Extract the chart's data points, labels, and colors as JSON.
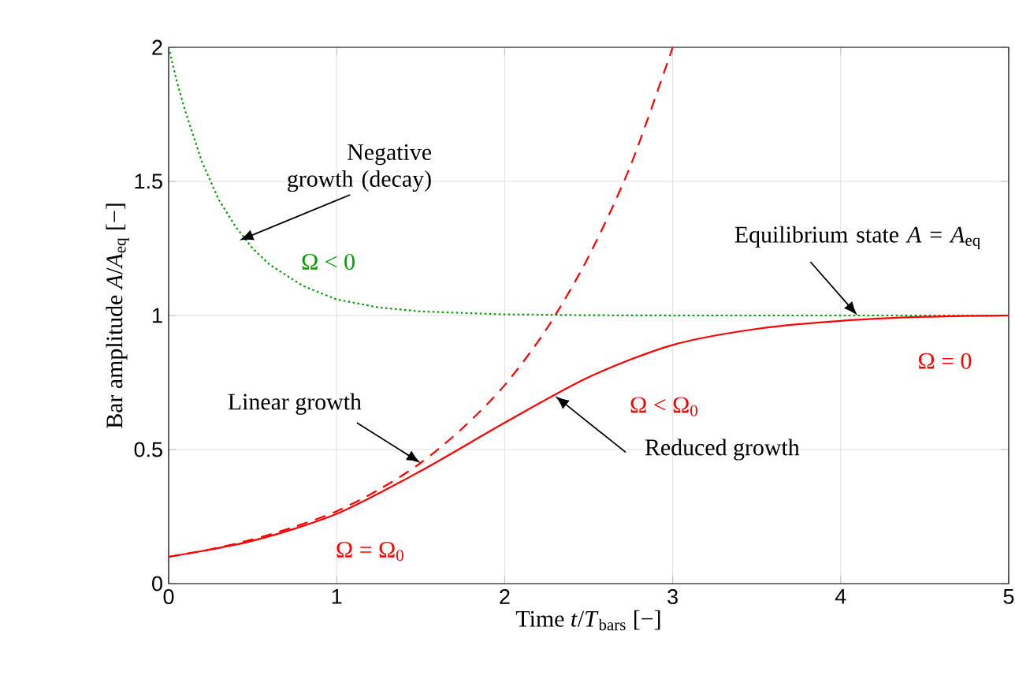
{
  "chart_data": {
    "type": "line",
    "xlabel": "Time *t*/*T*$_{bars}$ [−]",
    "ylabel": "Bar amplitude *A*/*A*$_{eq}$ [−]",
    "xlim": [
      0,
      5
    ],
    "ylim": [
      0,
      2
    ],
    "xticks": [
      0,
      1,
      2,
      3,
      4,
      5
    ],
    "yticks": [
      0,
      0.5,
      1,
      1.5,
      2
    ],
    "grid": true,
    "marker": "none",
    "series": [
      {
        "name": "Ω < 0",
        "color": "#00a000",
        "line_style": "dotted",
        "x": [
          0,
          0.05,
          0.1,
          0.2,
          0.3,
          0.4,
          0.5,
          0.6,
          0.8,
          1,
          1.25,
          1.5,
          2,
          2.5,
          3,
          4,
          5
        ],
        "values": [
          2.0,
          1.87,
          1.76,
          1.57,
          1.43,
          1.33,
          1.25,
          1.19,
          1.11,
          1.06,
          1.03,
          1.015,
          1.004,
          1.001,
          1,
          1,
          1
        ]
      },
      {
        "name": "Ω = Ω$_{0}$",
        "color": "#ff0000",
        "line_style": "dashed",
        "x": [
          0,
          0.25,
          0.5,
          0.75,
          1,
          1.25,
          1.5,
          1.75,
          2,
          2.25,
          2.5,
          2.75,
          3
        ],
        "values": [
          0.1,
          0.128,
          0.165,
          0.212,
          0.27,
          0.35,
          0.45,
          0.58,
          0.74,
          0.95,
          1.22,
          1.56,
          2.0
        ]
      },
      {
        "name": "Ω < Ω$_{0}$",
        "color": "#ff0000",
        "line_style": "solid",
        "x": [
          0,
          0.5,
          1,
          1.5,
          2,
          2.5,
          3,
          3.5,
          4,
          4.5,
          5
        ],
        "values": [
          0.1,
          0.16,
          0.26,
          0.42,
          0.6,
          0.77,
          0.89,
          0.95,
          0.98,
          0.995,
          1.0
        ]
      }
    ],
    "annotations": [
      {
        "text": "Negative growth (decay)",
        "x": 0.42,
        "y": 1.28
      },
      {
        "text": "Equilibrium state *A* = *A*$_{eq}$",
        "x": 4.1,
        "y": 1.0
      },
      {
        "text": "Linear growth",
        "x": 1.5,
        "y": 0.45
      },
      {
        "text": "Reduced growth",
        "x": 2.3,
        "y": 0.7
      },
      "Ω = 0"
    ]
  }
}
